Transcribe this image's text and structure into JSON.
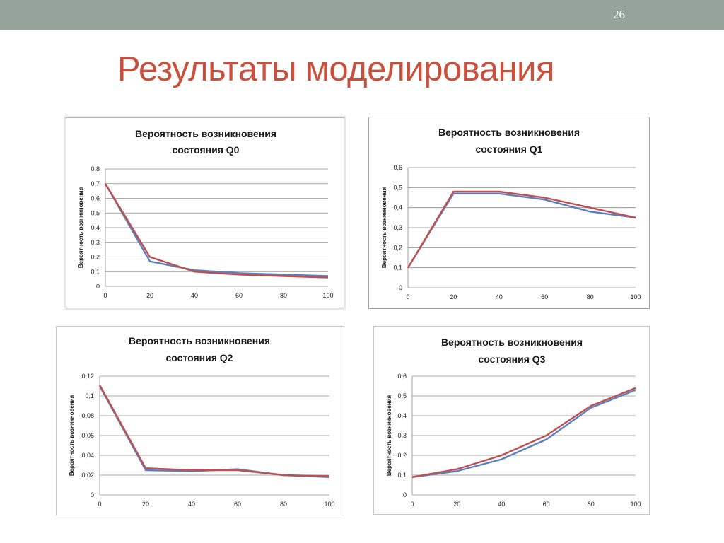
{
  "slide": {
    "number": "26",
    "title": "Результаты моделирования"
  },
  "colors": {
    "blue_series": "#5b80c2",
    "red_series": "#c0504d",
    "grid": "#8c8c8c",
    "title": "#c9503c"
  },
  "chart_data": [
    {
      "type": "line",
      "title_lines": [
        "Вероятность возникновения",
        "состояния Q0"
      ],
      "xlabel": "",
      "ylabel": "Вероятность возникновения",
      "x": [
        0,
        20,
        40,
        60,
        80,
        100
      ],
      "xticks": [
        "0",
        "20",
        "40",
        "60",
        "80",
        "100"
      ],
      "yticks": [
        "0",
        "0,1",
        "0,2",
        "0,3",
        "0,4",
        "0,5",
        "0,6",
        "0,7",
        "0,8"
      ],
      "ylim": [
        0,
        0.8
      ],
      "series": [
        {
          "color": "#5b80c2",
          "values": [
            0.7,
            0.17,
            0.11,
            0.09,
            0.08,
            0.07
          ]
        },
        {
          "color": "#c0504d",
          "values": [
            0.7,
            0.2,
            0.1,
            0.08,
            0.07,
            0.06
          ]
        }
      ],
      "grid": true,
      "legend": "none"
    },
    {
      "type": "line",
      "title_lines": [
        "Вероятность возникновения",
        "состояния Q1"
      ],
      "xlabel": "",
      "ylabel": "Вероятность возникновения",
      "x": [
        0,
        20,
        40,
        60,
        80,
        100
      ],
      "xticks": [
        "0",
        "20",
        "40",
        "60",
        "80",
        "100"
      ],
      "yticks": [
        "0",
        "0,1",
        "0,2",
        "0,3",
        "0,4",
        "0,5",
        "0,6"
      ],
      "ylim": [
        0,
        0.6
      ],
      "series": [
        {
          "color": "#5b80c2",
          "values": [
            0.1,
            0.47,
            0.47,
            0.44,
            0.38,
            0.35
          ]
        },
        {
          "color": "#c0504d",
          "values": [
            0.1,
            0.48,
            0.48,
            0.45,
            0.4,
            0.35
          ]
        }
      ],
      "grid": true,
      "legend": "none"
    },
    {
      "type": "line",
      "title_lines": [
        "Вероятность возникновения",
        "состояния Q2"
      ],
      "xlabel": "",
      "ylabel": "Вероятность возникновения",
      "x": [
        0,
        20,
        40,
        60,
        80,
        100
      ],
      "xticks": [
        "0",
        "20",
        "40",
        "60",
        "80",
        "100"
      ],
      "yticks": [
        "0",
        "0,02",
        "0,04",
        "0,06",
        "0,08",
        "0,1",
        "0,12"
      ],
      "ylim": [
        0,
        0.12
      ],
      "series": [
        {
          "color": "#5b80c2",
          "values": [
            0.11,
            0.025,
            0.024,
            0.026,
            0.02,
            0.018
          ]
        },
        {
          "color": "#c0504d",
          "values": [
            0.111,
            0.027,
            0.025,
            0.025,
            0.02,
            0.019
          ]
        }
      ],
      "grid": true,
      "legend": "none"
    },
    {
      "type": "line",
      "title_lines": [
        "Вероятность возникновения",
        "состояния Q3"
      ],
      "xlabel": "",
      "ylabel": "Вероятность возникновения",
      "x": [
        0,
        20,
        40,
        60,
        80,
        100
      ],
      "xticks": [
        "0",
        "20",
        "40",
        "60",
        "80",
        "100"
      ],
      "yticks": [
        "0",
        "0,1",
        "0,2",
        "0,3",
        "0,4",
        "0,5",
        "0,6"
      ],
      "ylim": [
        0,
        0.6
      ],
      "series": [
        {
          "color": "#5b80c2",
          "values": [
            0.09,
            0.12,
            0.18,
            0.28,
            0.44,
            0.53
          ]
        },
        {
          "color": "#c0504d",
          "values": [
            0.09,
            0.13,
            0.2,
            0.3,
            0.45,
            0.54
          ]
        }
      ],
      "grid": true,
      "legend": "none"
    }
  ]
}
